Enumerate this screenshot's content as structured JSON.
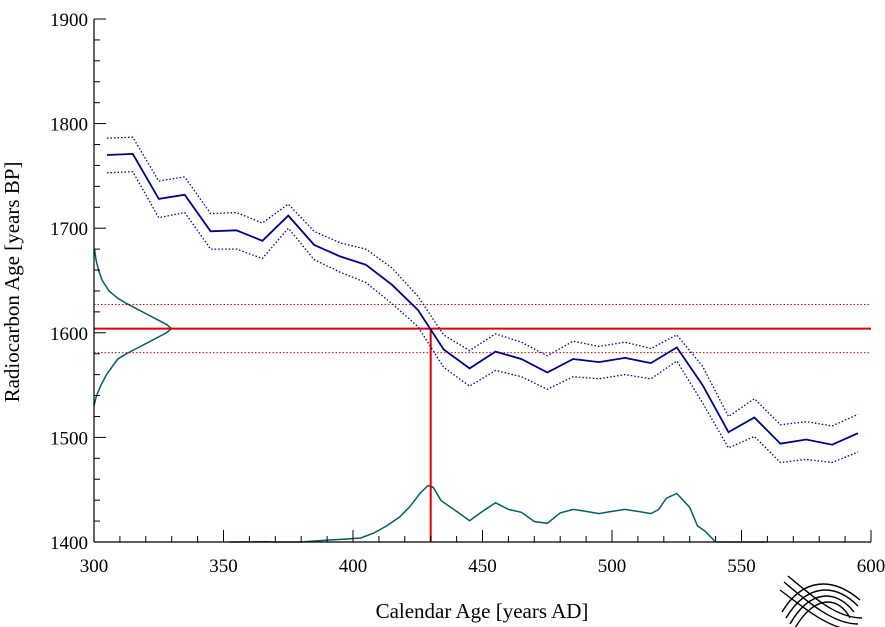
{
  "chart_data": {
    "type": "line",
    "xlabel": "Calendar Age [years AD]",
    "ylabel": "Radiocarbon Age [years BP]",
    "xlim": [
      300,
      600
    ],
    "ylim": [
      1400,
      1900
    ],
    "x_major_ticks": [
      300,
      350,
      400,
      450,
      500,
      550,
      600
    ],
    "y_major_ticks": [
      1400,
      1500,
      1600,
      1700,
      1800,
      1900
    ],
    "x_minor_step": 10,
    "y_minor_step": 20,
    "grid": false,
    "colors": {
      "calibration_curve": "#00008b",
      "sample_measurement": "#e00000",
      "distributions": "#006060"
    },
    "calibration_curve": {
      "x": [
        305,
        315,
        325,
        335,
        345,
        355,
        365,
        375,
        385,
        395,
        405,
        415,
        425,
        435,
        445,
        455,
        465,
        475,
        485,
        495,
        505,
        515,
        525,
        535,
        545,
        555,
        565,
        575,
        585,
        595
      ],
      "mean": [
        1770,
        1771,
        1728,
        1732,
        1697,
        1698,
        1688,
        1712,
        1684,
        1673,
        1665,
        1646,
        1622,
        1584,
        1566,
        1582,
        1575,
        1562,
        1575,
        1572,
        1576,
        1571,
        1586,
        1550,
        1505,
        1519,
        1494,
        1498,
        1493,
        1504
      ],
      "upper": [
        1786,
        1787,
        1745,
        1749,
        1714,
        1715,
        1705,
        1723,
        1697,
        1686,
        1680,
        1662,
        1635,
        1598,
        1583,
        1599,
        1591,
        1578,
        1592,
        1587,
        1591,
        1585,
        1598,
        1568,
        1520,
        1537,
        1512,
        1515,
        1511,
        1522
      ],
      "lower": [
        1753,
        1754,
        1710,
        1715,
        1680,
        1680,
        1671,
        1700,
        1670,
        1658,
        1648,
        1628,
        1606,
        1567,
        1549,
        1564,
        1558,
        1546,
        1558,
        1556,
        1560,
        1556,
        1573,
        1533,
        1490,
        1501,
        1476,
        1479,
        1476,
        1486
      ]
    },
    "sample_measurement": {
      "age_bp": 1604,
      "sigma": 23,
      "calibrated_peak_ad": 430
    },
    "measurement_distribution": {
      "age_bp": [
        1530,
        1540,
        1550,
        1560,
        1570,
        1575,
        1580,
        1585,
        1590,
        1595,
        1600,
        1604,
        1608,
        1613,
        1618,
        1623,
        1628,
        1633,
        1640,
        1650,
        1660,
        1670,
        1680
      ],
      "density": [
        0.0,
        0.1,
        0.28,
        0.5,
        0.8,
        0.95,
        1.3,
        1.7,
        2.1,
        2.5,
        2.9,
        3.1,
        2.9,
        2.5,
        2.1,
        1.7,
        1.3,
        0.95,
        0.6,
        0.33,
        0.18,
        0.08,
        0.02
      ]
    },
    "calibrated_distribution": {
      "x_ad": [
        352,
        360,
        366,
        370,
        380,
        390,
        397,
        403,
        408,
        413,
        418,
        422,
        426,
        429,
        431,
        434,
        440,
        445,
        450,
        455,
        460,
        465,
        470,
        475,
        480,
        485,
        490,
        495,
        500,
        505,
        510,
        515,
        518,
        521,
        525,
        530,
        533,
        536,
        540,
        550,
        560
      ],
      "density": [
        0.0,
        0.1,
        0.12,
        0.0,
        0.0,
        1.5,
        2.3,
        3.2,
        7.1,
        12.8,
        19.9,
        28.4,
        39.0,
        45.0,
        43.5,
        33.0,
        24.4,
        17.0,
        24.4,
        31.2,
        26.0,
        23.7,
        16.3,
        14.9,
        23.2,
        26.0,
        24.4,
        22.6,
        24.4,
        26.0,
        24.4,
        22.6,
        25.9,
        34.9,
        38.6,
        27.6,
        12.8,
        8.5,
        0.0,
        0.0,
        0.0
      ]
    }
  }
}
